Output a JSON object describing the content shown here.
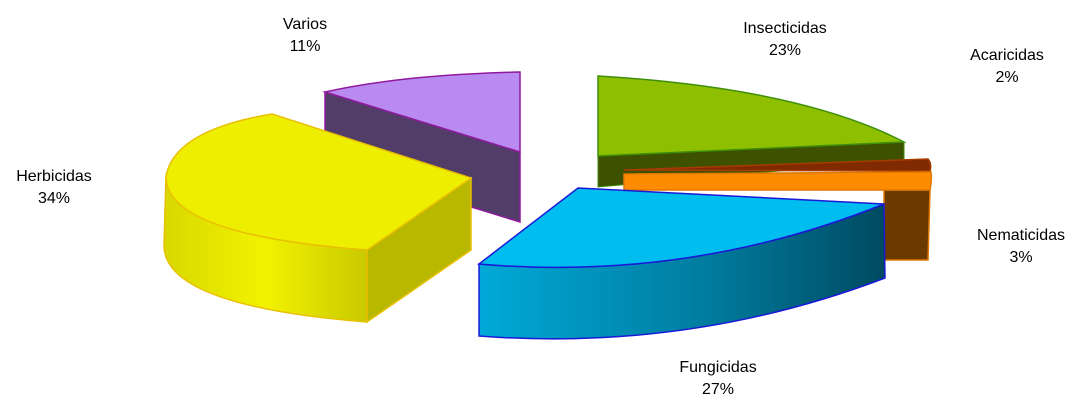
{
  "chart_data": {
    "type": "pie",
    "style": "3d-exploded",
    "legend": "none",
    "slices": [
      {
        "label": "Insecticidas",
        "value": 23,
        "value_label": "23%",
        "color": "#8ebf00",
        "edge": "#3f8f0a"
      },
      {
        "label": "Acaricidas",
        "value": 2,
        "value_label": "2%",
        "color": "#7f2a00",
        "edge": "#a53c00"
      },
      {
        "label": "Nematicidas",
        "value": 3,
        "value_label": "3%",
        "color": "#ff8c00",
        "edge": "#e07800"
      },
      {
        "label": "Fungicidas",
        "value": 27,
        "value_label": "27%",
        "color": "#00bdf0",
        "edge": "#1a1ad6"
      },
      {
        "label": "Herbicidas",
        "value": 34,
        "value_label": "34%",
        "color": "#eeee00",
        "edge": "#e8c000"
      },
      {
        "label": "Varios",
        "value": 11,
        "value_label": "11%",
        "color": "#b98af0",
        "edge": "#8f1aa0"
      }
    ]
  }
}
